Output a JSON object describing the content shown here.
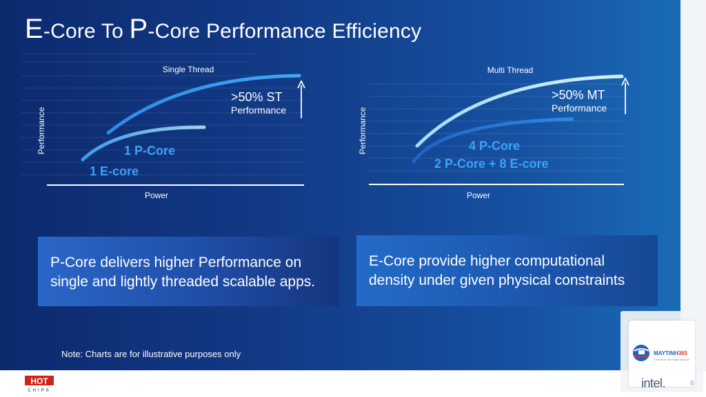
{
  "slide": {
    "title_e_letter": "E",
    "title_part1": "-Core To ",
    "title_p_letter": "P",
    "title_part2": "-Core Performance Efficiency",
    "note": "Note: Charts are for illustrative purposes only",
    "page_number": "8"
  },
  "charts": [
    {
      "title": "Single Thread",
      "xlabel": "Power",
      "ylabel": "Performance",
      "callout_main": ">50% ST",
      "callout_sub": "Performance",
      "series": [
        {
          "name": "1 P-Core",
          "color": "#42a5f0"
        },
        {
          "name": "1 E-core",
          "color": "#8ec8ee"
        }
      ]
    },
    {
      "title": "Multi Thread",
      "xlabel": "Power",
      "ylabel": "Performance",
      "callout_main": ">50% MT",
      "callout_sub": "Performance",
      "series": [
        {
          "name": "4 P-Core",
          "color": "#2a7de0"
        },
        {
          "name": "2 P-Core + 8 E-core",
          "color": "#c6ecfb"
        }
      ]
    }
  ],
  "captions": {
    "left": "P-Core delivers higher Performance on single and lightly threaded scalable apps.",
    "right": "E-Core provide higher computational density under given physical constraints"
  },
  "watermark": {
    "brand_a": "MAYTINH",
    "brand_b": "365",
    "tagline": "Chia sẻ & Thủ thuật máy tính"
  },
  "logos": {
    "intel": "intel.",
    "hot_chips_top": "HOT",
    "hot_chips_bottom": "CHIPS"
  },
  "colors": {
    "accent_blue": "#42a5f0",
    "light_blue": "#8ec8ee",
    "label_blue": "#3ea2f2"
  }
}
